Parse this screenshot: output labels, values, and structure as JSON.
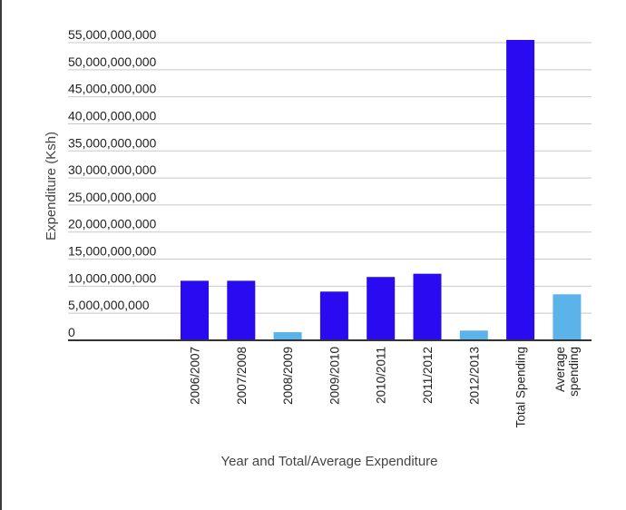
{
  "chart_data": {
    "type": "bar",
    "title": "",
    "xlabel": "Year and Total/Average Expenditure",
    "ylabel": "Expenditure (Ksh)",
    "ylim": [
      0,
      55000000000
    ],
    "yticks": [
      {
        "value": 0,
        "label": "0"
      },
      {
        "value": 5000000000,
        "label": "5,000,000,000"
      },
      {
        "value": 10000000000,
        "label": "10,000,000,000"
      },
      {
        "value": 15000000000,
        "label": "15,000,000,000"
      },
      {
        "value": 20000000000,
        "label": "20,000,000,000"
      },
      {
        "value": 25000000000,
        "label": "25,000,000,000"
      },
      {
        "value": 30000000000,
        "label": "30,000,000,000"
      },
      {
        "value": 35000000000,
        "label": "35,000,000,000"
      },
      {
        "value": 40000000000,
        "label": "40,000,000,000"
      },
      {
        "value": 45000000000,
        "label": "45,000,000,000"
      },
      {
        "value": 50000000000,
        "label": "50,000,000,000"
      },
      {
        "value": 55000000000,
        "label": "55,000,000,000"
      }
    ],
    "categories": [
      "2006/2007",
      "2007/2008",
      "2008/2009",
      "2009/2010",
      "2010/2011",
      "2011/2012",
      "2012/2013",
      "Total Spending",
      "Average spending"
    ],
    "values": [
      11000000000,
      11000000000,
      1500000000,
      9000000000,
      11700000000,
      12300000000,
      1800000000,
      57000000000,
      8500000000
    ],
    "colors": [
      "#2a0af0",
      "#2a0af0",
      "#5cb3ea",
      "#2a0af0",
      "#2a0af0",
      "#2a0af0",
      "#5cb3ea",
      "#2a0af0",
      "#5cb3ea"
    ],
    "grid": true,
    "legend": "none"
  }
}
